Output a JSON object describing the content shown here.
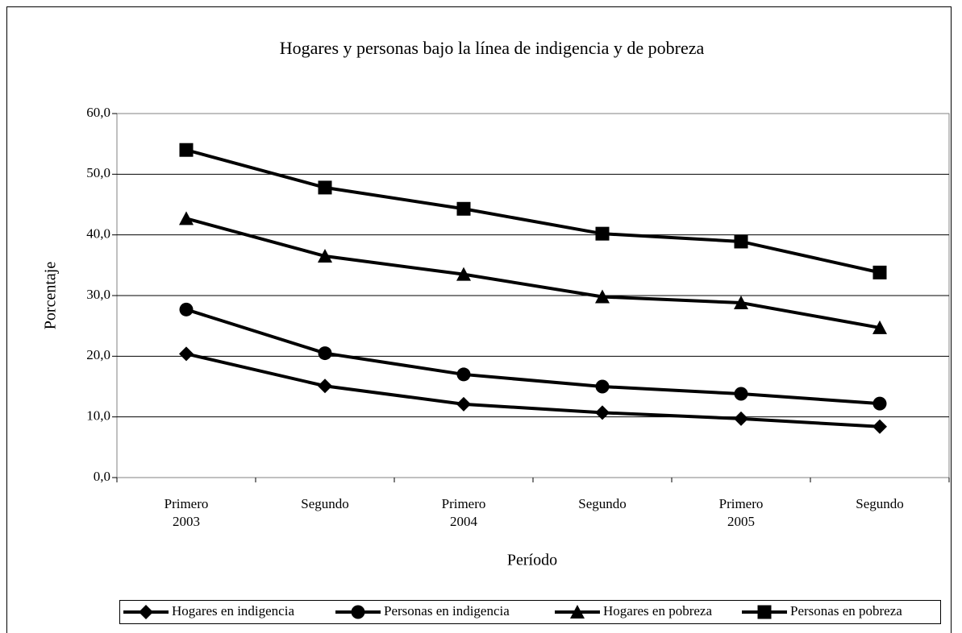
{
  "chart_data": {
    "type": "line",
    "title": "Hogares y personas bajo la línea de indigencia y de pobreza",
    "x_label": "Período",
    "y_label": "Porcentaje",
    "categories": [
      "Primero\n2003",
      "Segundo",
      "Primero\n2004",
      "Segundo",
      "Primero\n2005",
      "Segundo"
    ],
    "series": [
      {
        "name": "Hogares en indigencia",
        "color": "#000000",
        "marker": "diamond",
        "values": [
          20.4,
          15.1,
          12.1,
          10.7,
          9.7,
          8.4
        ]
      },
      {
        "name": "Personas en indigencia",
        "color": "#000000",
        "marker": "circle",
        "values": [
          27.7,
          20.5,
          17.0,
          15.0,
          13.8,
          12.2
        ]
      },
      {
        "name": "Hogares en pobreza",
        "color": "#000000",
        "marker": "triangle",
        "values": [
          42.7,
          36.5,
          33.5,
          29.8,
          28.8,
          24.7
        ]
      },
      {
        "name": "Personas en pobreza",
        "color": "#000000",
        "marker": "square",
        "values": [
          54.0,
          47.8,
          44.3,
          40.2,
          38.9,
          33.8
        ]
      }
    ],
    "ylim": [
      0,
      60
    ],
    "yticks": [
      {
        "value": 0,
        "label": "0,0"
      },
      {
        "value": 10,
        "label": "10,0"
      },
      {
        "value": 20,
        "label": "20,0"
      },
      {
        "value": 30,
        "label": "30,0"
      },
      {
        "value": 40,
        "label": "40,0"
      },
      {
        "value": 50,
        "label": "50,0"
      },
      {
        "value": 60,
        "label": "60,0"
      }
    ],
    "grid": true,
    "legend": "bottom"
  }
}
